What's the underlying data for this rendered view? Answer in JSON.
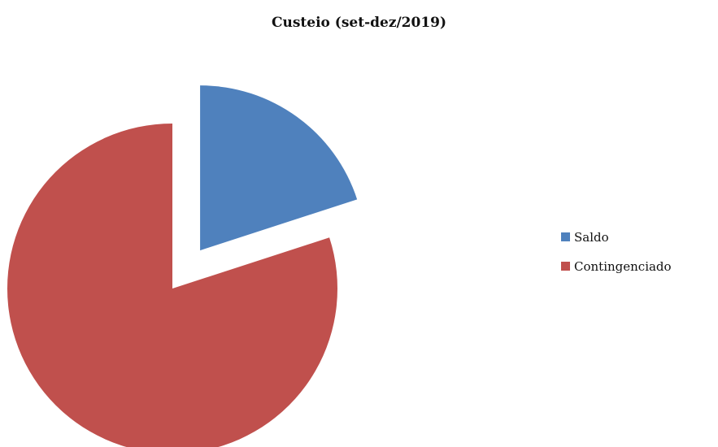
{
  "chart_data": {
    "type": "pie",
    "title": "Custeio (set-dez/2019)",
    "slices": [
      {
        "label": "Saldo",
        "value": 20,
        "color": "#4F81BD",
        "exploded": true
      },
      {
        "label": "Contingenciado",
        "value": 80,
        "color": "#C0504D",
        "exploded": false
      }
    ],
    "start_angle_deg": 0,
    "direction": "clockwise",
    "legend_position": "right"
  }
}
